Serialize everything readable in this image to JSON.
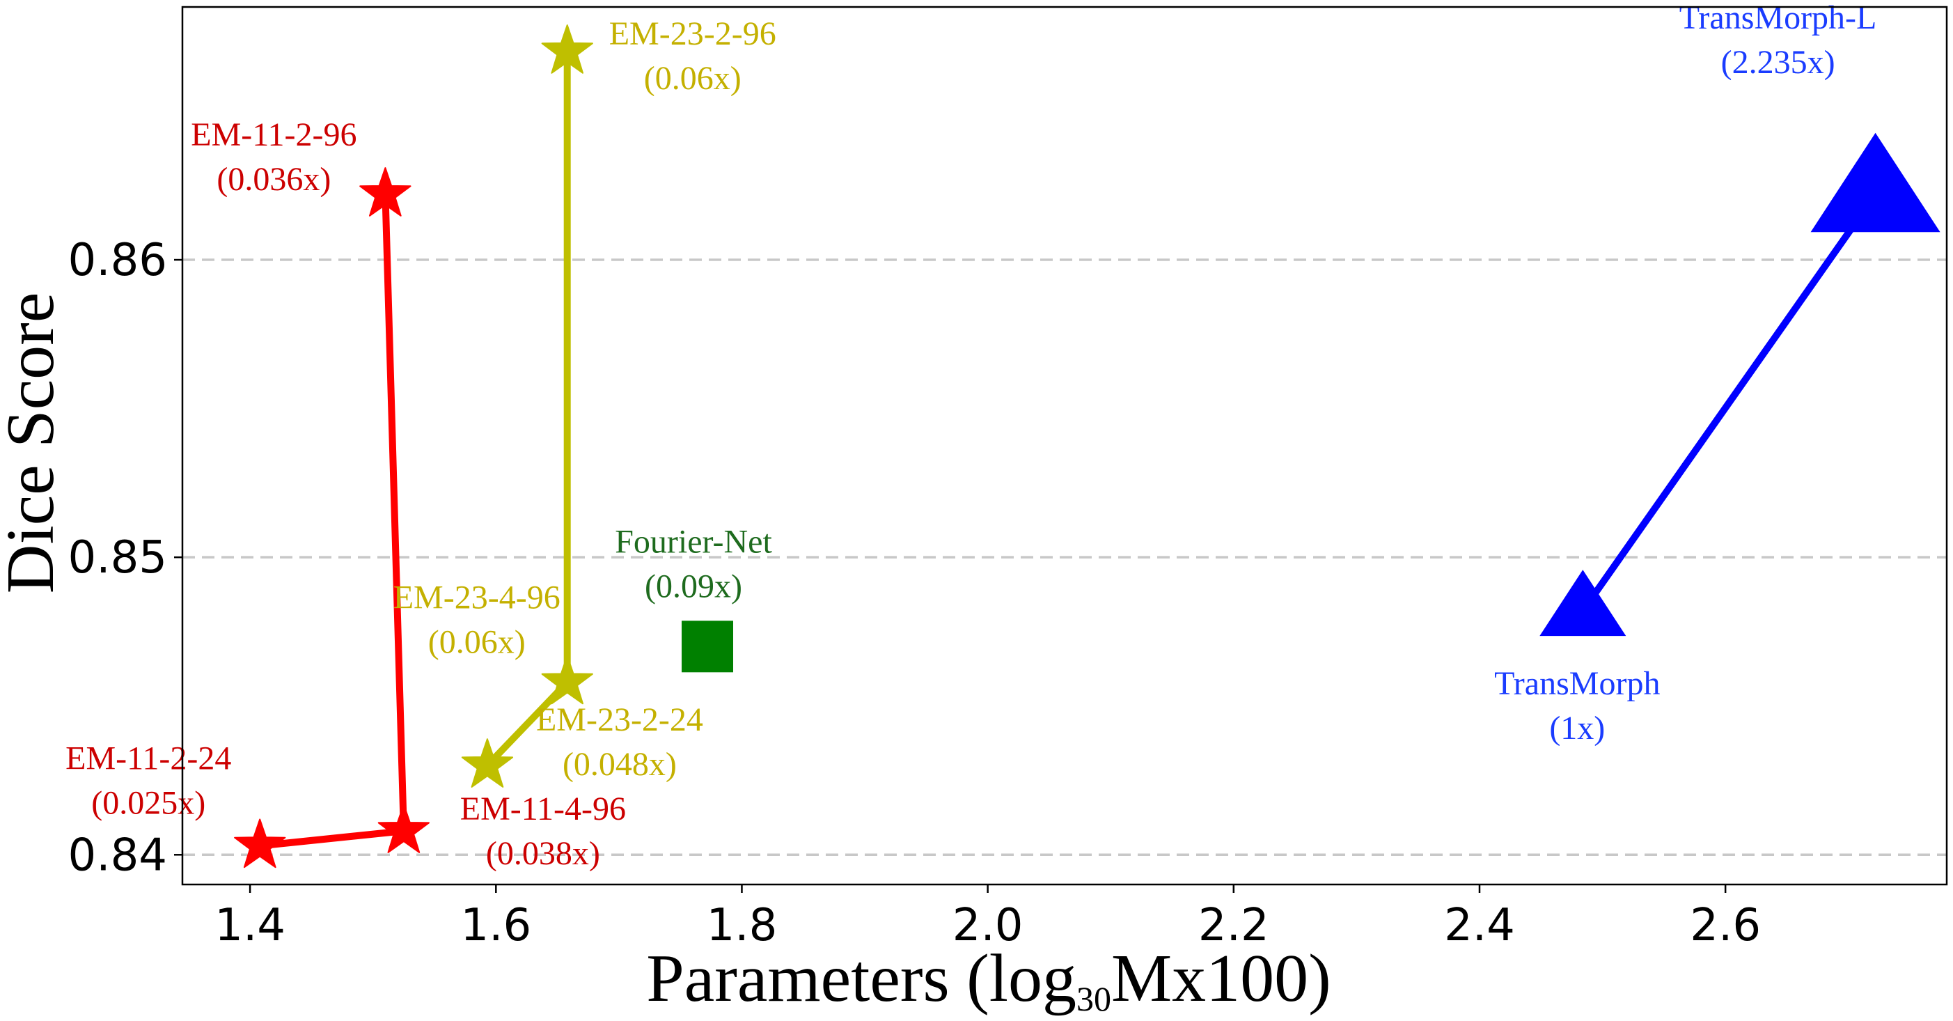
{
  "chart_data": {
    "type": "scatter",
    "title": "",
    "xlabel": {
      "main": "Parameters (log",
      "subscript": "30",
      "rest": "Mx100)"
    },
    "ylabel": "Dice Score",
    "xlim": [
      1.345,
      2.78
    ],
    "ylim": [
      0.839,
      0.8685
    ],
    "xticks": [
      {
        "value": 1.4,
        "label": "1.4"
      },
      {
        "value": 1.6,
        "label": "1.6"
      },
      {
        "value": 1.8,
        "label": "1.8"
      },
      {
        "value": 2.0,
        "label": "2.0"
      },
      {
        "value": 2.2,
        "label": "2.2"
      },
      {
        "value": 2.4,
        "label": "2.4"
      },
      {
        "value": 2.6,
        "label": "2.6"
      }
    ],
    "yticks": [
      {
        "value": 0.84,
        "label": "0.84"
      },
      {
        "value": 0.85,
        "label": "0.85"
      },
      {
        "value": 0.86,
        "label": "0.86"
      }
    ],
    "grid": {
      "y": true,
      "x": false,
      "style": "dashed"
    },
    "series": [
      {
        "color": "#ff0000",
        "label_color": "#cc0000",
        "marker": "star",
        "connected": true,
        "points": [
          {
            "x": 1.408,
            "y": 0.8403,
            "label": "EM-11-2-24",
            "sublabel": "(0.025x)",
            "label_pos": "above-left"
          },
          {
            "x": 1.525,
            "y": 0.8408,
            "label": "EM-11-4-96",
            "sublabel": "(0.038x)",
            "label_pos": "below-right"
          },
          {
            "x": 1.51,
            "y": 0.8622,
            "label": "EM-11-2-96",
            "sublabel": "(0.036x)",
            "label_pos": "above-left"
          }
        ]
      },
      {
        "color": "#bfbf00",
        "label_color": "#c4b000",
        "marker": "star",
        "connected": true,
        "points": [
          {
            "x": 1.593,
            "y": 0.843,
            "label": "EM-23-2-24",
            "sublabel": "(0.048x)",
            "label_pos": "right"
          },
          {
            "x": 1.658,
            "y": 0.8458,
            "label": "EM-23-4-96",
            "sublabel": "(0.06x)",
            "label_pos": "above-left"
          },
          {
            "x": 1.658,
            "y": 0.867,
            "label": "EM-23-2-96",
            "sublabel": "(0.06x)",
            "label_pos": "right"
          }
        ]
      },
      {
        "color": "#008000",
        "label_color": "#1e6b1e",
        "marker": "square",
        "connected": false,
        "points": [
          {
            "x": 1.772,
            "y": 0.847,
            "label": "Fourier-Net",
            "sublabel": "(0.09x)",
            "label_pos": "above"
          }
        ]
      },
      {
        "color": "#0000ff",
        "label_color": "#1a3cff",
        "marker": "triangle",
        "connected": true,
        "points": [
          {
            "x": 2.484,
            "y": 0.8482,
            "size": "small",
            "label": "TransMorph",
            "sublabel": "(1x)",
            "label_pos": "below"
          },
          {
            "x": 2.722,
            "y": 0.8622,
            "size": "large",
            "label": "TransMorph-L",
            "sublabel": "(2.235x)",
            "label_pos": "above-left"
          }
        ]
      }
    ]
  }
}
